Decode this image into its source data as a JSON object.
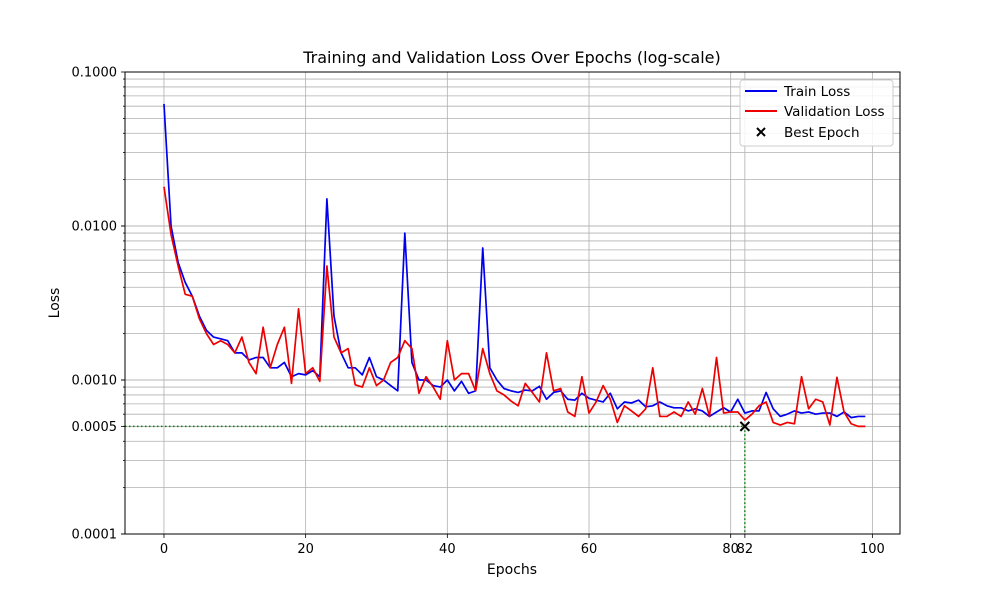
{
  "chart_data": {
    "type": "line",
    "title": "Training and Validation Loss Over Epochs (log-scale)",
    "xlabel": "Epochs",
    "ylabel": "Loss",
    "xlim": [
      -5.5,
      103.9
    ],
    "ylim": [
      0.0001,
      0.1
    ],
    "yscale": "log",
    "grid": true,
    "legend_position": "top-right",
    "x_ticks": [
      0,
      20,
      40,
      60,
      80,
      82,
      100
    ],
    "y_ticks": [
      0.0001,
      0.0005,
      0.001,
      0.01,
      0.1
    ],
    "y_tick_labels": [
      "0.0001",
      "0.0005",
      "0.0010",
      "0.0100",
      "0.1000"
    ],
    "x": [
      0,
      1,
      2,
      3,
      4,
      5,
      6,
      7,
      8,
      9,
      10,
      11,
      12,
      13,
      14,
      15,
      16,
      17,
      18,
      19,
      20,
      21,
      22,
      23,
      24,
      25,
      26,
      27,
      28,
      29,
      30,
      31,
      32,
      33,
      34,
      35,
      36,
      37,
      38,
      39,
      40,
      41,
      42,
      43,
      44,
      45,
      46,
      47,
      48,
      49,
      50,
      51,
      52,
      53,
      54,
      55,
      56,
      57,
      58,
      59,
      60,
      61,
      62,
      63,
      64,
      65,
      66,
      67,
      68,
      69,
      70,
      71,
      72,
      73,
      74,
      75,
      76,
      77,
      78,
      79,
      80,
      81,
      82,
      83,
      84,
      85,
      86,
      87,
      88,
      89,
      90,
      91,
      92,
      93,
      94,
      95,
      96,
      97,
      98,
      99
    ],
    "series": [
      {
        "name": "Train Loss",
        "color": "#0000ee",
        "values": [
          0.062,
          0.01,
          0.0058,
          0.0043,
          0.0035,
          0.0026,
          0.0021,
          0.0019,
          0.00185,
          0.0018,
          0.0015,
          0.0015,
          0.00135,
          0.0014,
          0.0014,
          0.0012,
          0.0012,
          0.0013,
          0.00105,
          0.0011,
          0.00108,
          0.00115,
          0.00105,
          0.015,
          0.0026,
          0.0015,
          0.0012,
          0.0012,
          0.00108,
          0.0014,
          0.00105,
          0.001,
          0.00092,
          0.00085,
          0.009,
          0.0013,
          0.001,
          0.001,
          0.00092,
          0.0009,
          0.001,
          0.00085,
          0.00098,
          0.00082,
          0.00085,
          0.0072,
          0.0012,
          0.001,
          0.00088,
          0.00085,
          0.00083,
          0.00086,
          0.00085,
          0.00091,
          0.00075,
          0.00083,
          0.00085,
          0.00075,
          0.00074,
          0.00082,
          0.00076,
          0.00074,
          0.00072,
          0.00082,
          0.00065,
          0.00072,
          0.00071,
          0.00074,
          0.00067,
          0.00068,
          0.00072,
          0.00068,
          0.00066,
          0.00066,
          0.00063,
          0.00065,
          0.00063,
          0.00058,
          0.00062,
          0.00066,
          0.00062,
          0.00075,
          0.00061,
          0.00063,
          0.00063,
          0.00083,
          0.00065,
          0.00058,
          0.0006,
          0.00063,
          0.00061,
          0.00062,
          0.0006,
          0.00061,
          0.00061,
          0.00058,
          0.00062,
          0.00057,
          0.00058,
          0.00058
        ]
      },
      {
        "name": "Validation Loss",
        "color": "#ee0000",
        "values": [
          0.018,
          0.0088,
          0.0055,
          0.0036,
          0.0035,
          0.0025,
          0.002,
          0.0017,
          0.0018,
          0.0017,
          0.0015,
          0.0019,
          0.0013,
          0.0011,
          0.0022,
          0.0012,
          0.0017,
          0.0022,
          0.00095,
          0.0029,
          0.0011,
          0.0012,
          0.00098,
          0.0055,
          0.0019,
          0.0015,
          0.0016,
          0.00093,
          0.0009,
          0.0012,
          0.00092,
          0.001,
          0.0013,
          0.0014,
          0.0018,
          0.0016,
          0.00082,
          0.00105,
          0.0009,
          0.00075,
          0.0018,
          0.001,
          0.0011,
          0.0011,
          0.00085,
          0.0016,
          0.0011,
          0.00085,
          0.0008,
          0.00073,
          0.00068,
          0.00095,
          0.00083,
          0.00072,
          0.0015,
          0.00085,
          0.00088,
          0.00062,
          0.00058,
          0.00105,
          0.00061,
          0.00072,
          0.00092,
          0.00075,
          0.00053,
          0.00068,
          0.00063,
          0.00058,
          0.00065,
          0.0012,
          0.00058,
          0.00058,
          0.00062,
          0.00058,
          0.00072,
          0.0006,
          0.00088,
          0.00058,
          0.0014,
          0.00061,
          0.00062,
          0.00062,
          0.00055,
          0.0006,
          0.00068,
          0.00072,
          0.00053,
          0.00051,
          0.00053,
          0.00052,
          0.00105,
          0.00065,
          0.00075,
          0.00072,
          0.00051,
          0.00104,
          0.00062,
          0.00052,
          0.0005,
          0.0005
        ]
      }
    ],
    "best_epoch": {
      "name": "Best Epoch",
      "x": 82,
      "y": 0.0005,
      "color": "#000000",
      "guide_color": "#008000"
    }
  }
}
